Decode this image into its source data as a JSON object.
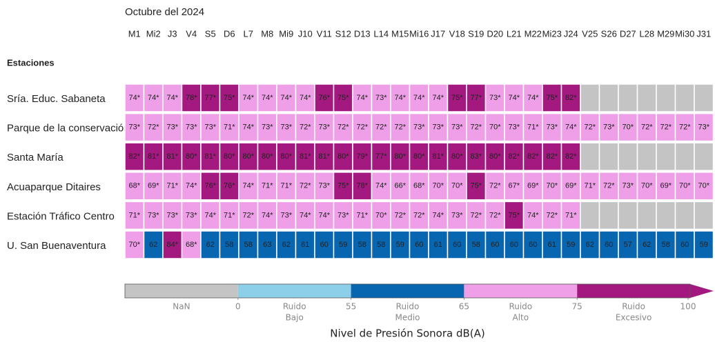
{
  "chart_data": {
    "type": "heatmap",
    "title": "Octubre del 2024",
    "row_header": "Estaciones",
    "categories": [
      "M1",
      "Mi2",
      "J3",
      "V4",
      "S5",
      "D6",
      "L7",
      "M8",
      "Mi9",
      "J10",
      "V11",
      "S12",
      "D13",
      "L14",
      "M15",
      "Mi16",
      "J17",
      "V18",
      "S19",
      "D20",
      "L21",
      "M22",
      "Mi23",
      "J24",
      "V25",
      "S26",
      "D27",
      "L28",
      "M29",
      "Mi30",
      "J31"
    ],
    "series": [
      {
        "name": "Sría. Educ. Sabaneta",
        "values": [
          74,
          74,
          74,
          78,
          77,
          75,
          74,
          74,
          74,
          74,
          76,
          75,
          74,
          73,
          74,
          74,
          74,
          75,
          77,
          73,
          74,
          74,
          75,
          82,
          null,
          null,
          null,
          null,
          null,
          null,
          null
        ],
        "value_labels": [
          "74*",
          "74*",
          "74*",
          "78*",
          "77*",
          "75*",
          "74*",
          "74*",
          "74*",
          "74*",
          "76*",
          "75*",
          "74*",
          "73*",
          "74*",
          "74*",
          "74*",
          "75*",
          "77*",
          "73*",
          "74*",
          "74*",
          "75*",
          "82*",
          null,
          null,
          null,
          null,
          null,
          null,
          null
        ]
      },
      {
        "name": "Parque de la conservación",
        "values": [
          73,
          72,
          73,
          73,
          73,
          71,
          74,
          73,
          73,
          72,
          73,
          72,
          72,
          72,
          72,
          73,
          73,
          73,
          72,
          70,
          73,
          71,
          73,
          74,
          72,
          73,
          70,
          72,
          72,
          72,
          73
        ],
        "value_labels": [
          "73*",
          "72*",
          "73*",
          "73*",
          "73*",
          "71*",
          "74*",
          "73*",
          "73*",
          "72*",
          "73*",
          "72*",
          "72*",
          "72*",
          "72*",
          "73*",
          "73*",
          "73*",
          "72*",
          "70*",
          "73*",
          "71*",
          "73*",
          "74*",
          "72*",
          "73*",
          "70*",
          "72*",
          "72*",
          "72*",
          "73*"
        ]
      },
      {
        "name": "Santa María",
        "values": [
          82,
          81,
          81,
          80,
          81,
          80,
          80,
          80,
          80,
          81,
          81,
          80,
          79,
          77,
          80,
          80,
          81,
          80,
          83,
          80,
          82,
          82,
          82,
          82,
          null,
          null,
          null,
          null,
          null,
          null,
          null
        ],
        "value_labels": [
          "82*",
          "81*",
          "81*",
          "80*",
          "81*",
          "80*",
          "80*",
          "80*",
          "80*",
          "81*",
          "81*",
          "80*",
          "79*",
          "77*",
          "80*",
          "80*",
          "81*",
          "80*",
          "83*",
          "80*",
          "82*",
          "82*",
          "82*",
          "82*",
          null,
          null,
          null,
          null,
          null,
          null,
          null
        ]
      },
      {
        "name": "Acuaparque Ditaires",
        "values": [
          68,
          69,
          71,
          74,
          76,
          76,
          74,
          71,
          71,
          72,
          73,
          75,
          78,
          74,
          66,
          68,
          70,
          70,
          75,
          72,
          67,
          69,
          70,
          69,
          71,
          72,
          73,
          70,
          69,
          70,
          70
        ],
        "value_labels": [
          "68*",
          "69*",
          "71*",
          "74*",
          "76*",
          "76*",
          "74*",
          "71*",
          "71*",
          "72*",
          "73*",
          "75*",
          "78*",
          "74*",
          "66*",
          "68*",
          "70*",
          "70*",
          "75*",
          "72*",
          "67*",
          "69*",
          "70*",
          "69*",
          "71*",
          "72*",
          "73*",
          "70*",
          "69*",
          "70*",
          "70*"
        ]
      },
      {
        "name": "Estación Tráfico Centro",
        "values": [
          71,
          73,
          73,
          73,
          74,
          71,
          72,
          74,
          73,
          74,
          74,
          73,
          71,
          70,
          72,
          72,
          74,
          73,
          72,
          72,
          75,
          74,
          72,
          71,
          null,
          null,
          null,
          null,
          null,
          null,
          null
        ],
        "value_labels": [
          "71*",
          "73*",
          "73*",
          "73*",
          "74*",
          "71*",
          "72*",
          "74*",
          "73*",
          "74*",
          "74*",
          "73*",
          "71*",
          "70*",
          "72*",
          "72*",
          "74*",
          "73*",
          "72*",
          "72*",
          "75*",
          "74*",
          "72*",
          "71*",
          null,
          null,
          null,
          null,
          null,
          null,
          null
        ]
      },
      {
        "name": "U. San Buenaventura",
        "values": [
          70,
          62,
          84,
          68,
          62,
          58,
          58,
          63,
          62,
          61,
          60,
          59,
          58,
          58,
          59,
          60,
          61,
          60,
          58,
          60,
          60,
          60,
          61,
          59,
          62,
          60,
          57,
          62,
          58,
          60,
          59
        ],
        "value_labels": [
          "70*",
          null,
          "84*",
          "68*",
          null,
          null,
          null,
          null,
          null,
          null,
          null,
          null,
          null,
          null,
          null,
          null,
          null,
          null,
          null,
          null,
          null,
          null,
          null,
          null,
          null,
          null,
          null,
          null,
          null,
          null,
          null
        ]
      }
    ],
    "colorbar": {
      "title": "Nivel de Presión Sonora dB(A)",
      "nan_label": "NaN",
      "nan_color": "#c4c4c4",
      "bins": [
        0,
        55,
        65,
        75,
        100
      ],
      "colors": [
        "#8dcfe8",
        "#0865b0",
        "#ee9fe8",
        "#a3197f"
      ],
      "labels": [
        [
          "Ruido",
          "Bajo"
        ],
        [
          "Ruido",
          "Medio"
        ],
        [
          "Ruido",
          "Alto"
        ],
        [
          "Ruido",
          "Excesivo"
        ]
      ]
    }
  }
}
